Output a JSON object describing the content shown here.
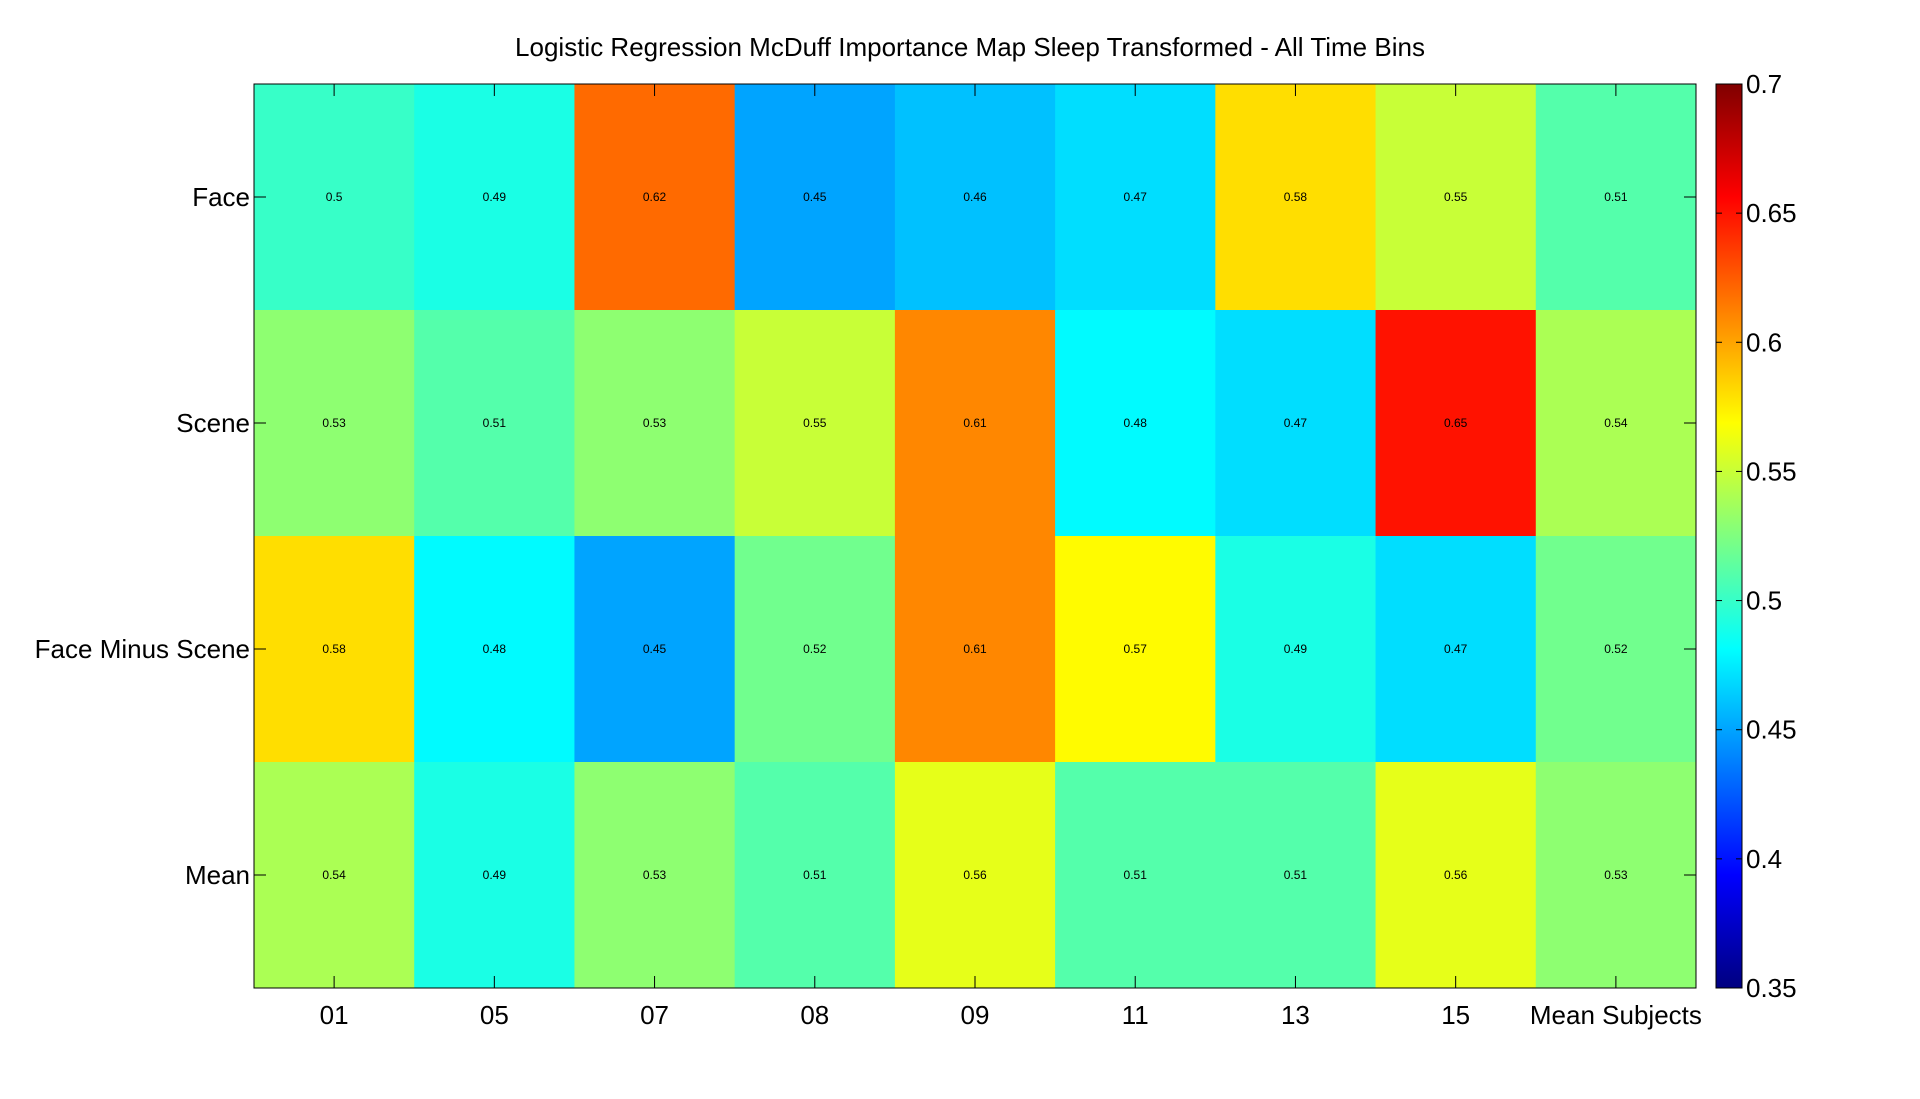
{
  "chart_data": {
    "type": "heatmap",
    "title": "Logistic Regression McDuff Importance Map Sleep Transformed - All Time Bins",
    "x_categories": [
      "01",
      "05",
      "07",
      "08",
      "09",
      "11",
      "13",
      "15",
      "Mean Subjects"
    ],
    "y_categories": [
      "Face",
      "Scene",
      "Face Minus Scene",
      "Mean"
    ],
    "values": [
      [
        0.5,
        0.49,
        0.62,
        0.45,
        0.46,
        0.47,
        0.58,
        0.55,
        0.51
      ],
      [
        0.53,
        0.51,
        0.53,
        0.55,
        0.61,
        0.48,
        0.47,
        0.65,
        0.54
      ],
      [
        0.58,
        0.48,
        0.45,
        0.52,
        0.61,
        0.57,
        0.49,
        0.47,
        0.52
      ],
      [
        0.54,
        0.49,
        0.53,
        0.51,
        0.56,
        0.51,
        0.51,
        0.56,
        0.53
      ]
    ],
    "labels": [
      [
        "0.5",
        "0.49",
        "0.62",
        "0.45",
        "0.46",
        "0.47",
        "0.58",
        "0.55",
        "0.51"
      ],
      [
        "0.53",
        "0.51",
        "0.53",
        "0.55",
        "0.61",
        "0.48",
        "0.47",
        "0.65",
        "0.54"
      ],
      [
        "0.58",
        "0.48",
        "0.45",
        "0.52",
        "0.61",
        "0.57",
        "0.49",
        "0.47",
        "0.52"
      ],
      [
        "0.54",
        "0.49",
        "0.53",
        "0.51",
        "0.56",
        "0.51",
        "0.51",
        "0.56",
        "0.53"
      ]
    ],
    "colorbar": {
      "range": [
        0.35,
        0.7
      ],
      "ticks": [
        0.35,
        0.4,
        0.45,
        0.5,
        0.55,
        0.6,
        0.65,
        0.7
      ],
      "tick_labels": [
        "0.35",
        "0.4",
        "0.45",
        "0.5",
        "0.55",
        "0.6",
        "0.65",
        "0.7"
      ],
      "colormap": "jet"
    },
    "grid": false
  }
}
